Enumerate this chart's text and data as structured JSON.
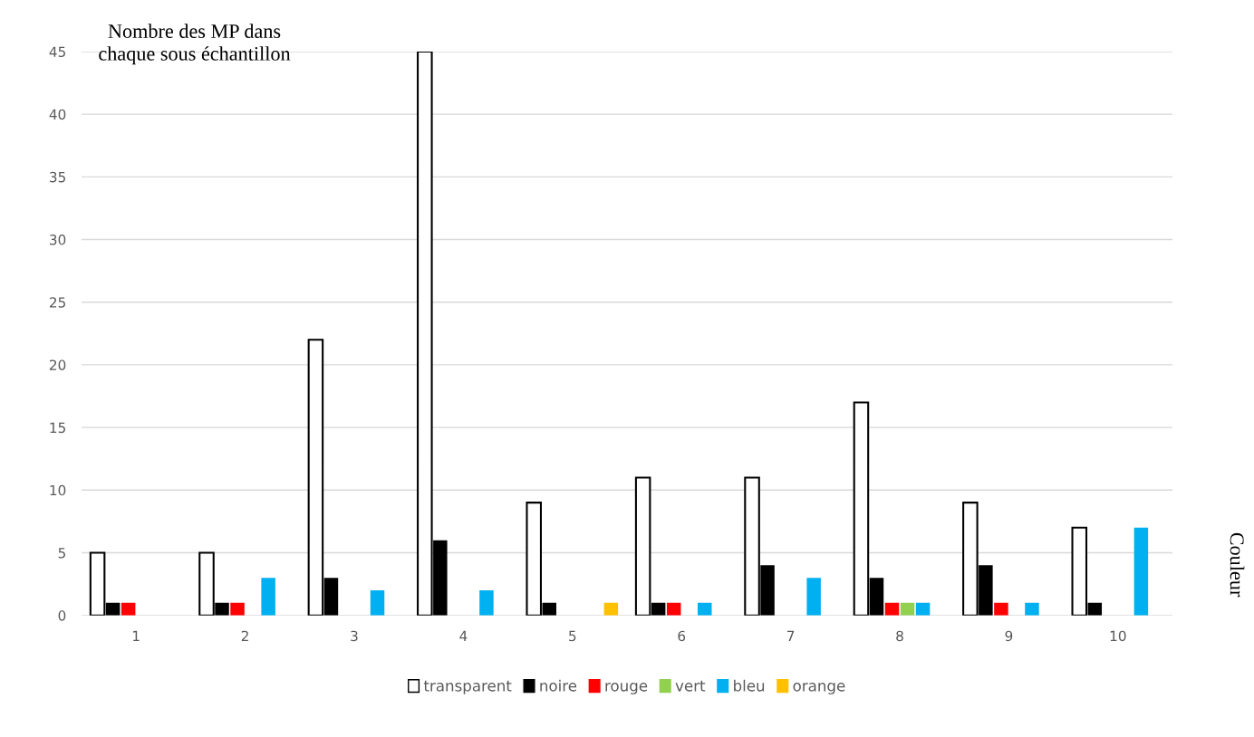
{
  "chart_data": {
    "type": "bar",
    "ylabel": "Nombre des MP dans\nchaque sous échantillon",
    "annotations": [
      "Couleur"
    ],
    "categories": [
      "1",
      "2",
      "3",
      "4",
      "5",
      "6",
      "7",
      "8",
      "9",
      "10"
    ],
    "series": [
      {
        "name": "transparent",
        "color": "#ffffff",
        "values": [
          5,
          5,
          22,
          45,
          9,
          11,
          11,
          17,
          9,
          7
        ]
      },
      {
        "name": "noire",
        "color": "#000000",
        "values": [
          1,
          1,
          3,
          6,
          1,
          1,
          4,
          3,
          4,
          1
        ]
      },
      {
        "name": "rouge",
        "color": "#ff0000",
        "values": [
          1,
          1,
          0,
          0,
          0,
          1,
          0,
          1,
          1,
          0
        ]
      },
      {
        "name": "vert",
        "color": "#92d050",
        "values": [
          0,
          0,
          0,
          0,
          0,
          0,
          0,
          1,
          0,
          0
        ]
      },
      {
        "name": "bleu",
        "color": "#00b0f0",
        "values": [
          0,
          3,
          2,
          2,
          0,
          1,
          3,
          1,
          1,
          7
        ]
      },
      {
        "name": "orange",
        "color": "#ffc000",
        "values": [
          0,
          0,
          0,
          0,
          1,
          0,
          0,
          0,
          0,
          0
        ]
      }
    ],
    "ylim": [
      0,
      45
    ],
    "yticks": [
      0,
      5,
      10,
      15,
      20,
      25,
      30,
      35,
      40,
      45
    ],
    "grid": "y",
    "legend": "bottom"
  }
}
